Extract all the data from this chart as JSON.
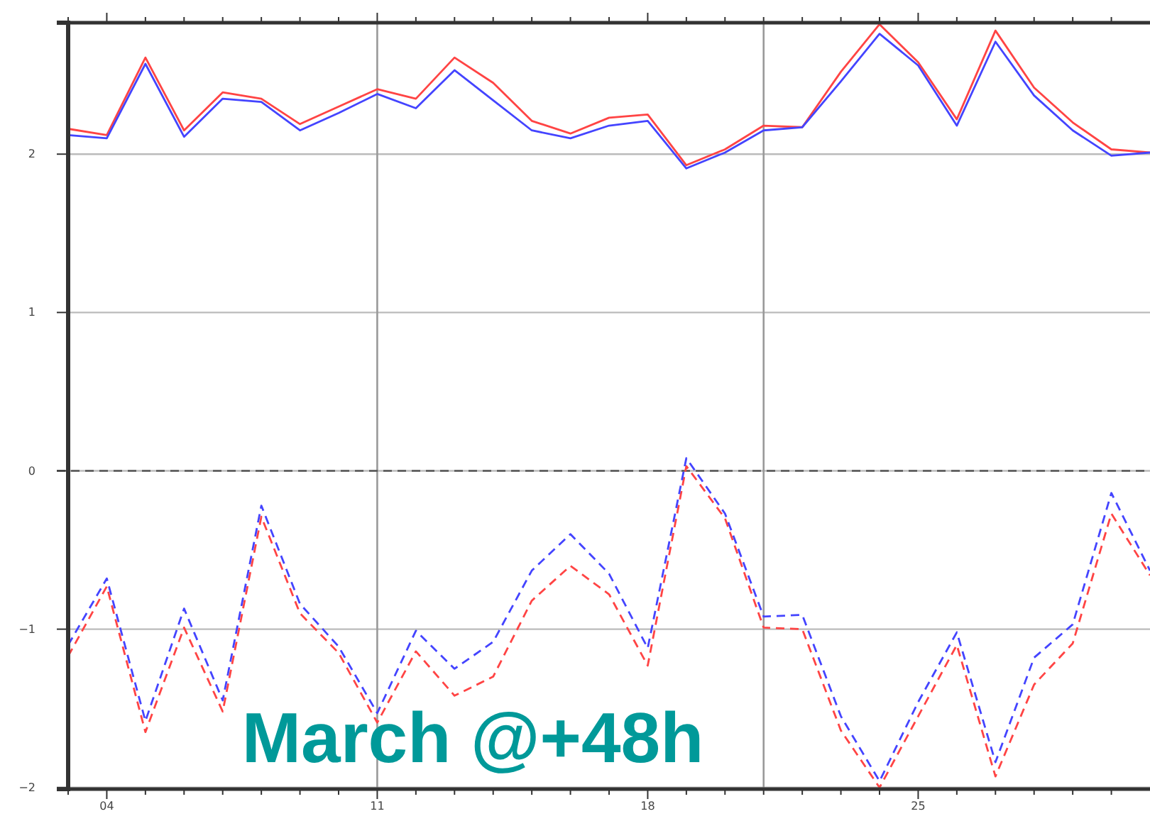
{
  "chart_data": {
    "type": "line",
    "x": [
      3,
      4,
      5,
      6,
      7,
      8,
      9,
      10,
      11,
      12,
      13,
      14,
      15,
      16,
      17,
      18,
      19,
      20,
      21,
      22,
      23,
      24,
      25,
      26,
      27,
      28,
      29,
      30,
      31
    ],
    "series": [
      {
        "color": "#ff4444",
        "line_style": "solid",
        "values": [
          2.16,
          2.12,
          2.61,
          2.15,
          2.39,
          2.35,
          2.19,
          2.3,
          2.41,
          2.35,
          2.61,
          2.45,
          2.21,
          2.13,
          2.23,
          2.25,
          1.93,
          2.03,
          2.18,
          2.17,
          2.52,
          2.82,
          2.58,
          2.22,
          2.78,
          2.42,
          2.2,
          2.03,
          2.01
        ]
      },
      {
        "color": "#4444ff",
        "line_style": "solid",
        "values": [
          2.12,
          2.1,
          2.57,
          2.11,
          2.35,
          2.33,
          2.15,
          2.26,
          2.38,
          2.29,
          2.53,
          2.34,
          2.15,
          2.1,
          2.18,
          2.21,
          1.91,
          2.01,
          2.15,
          2.17,
          2.46,
          2.76,
          2.56,
          2.18,
          2.71,
          2.37,
          2.15,
          1.99,
          2.01
        ]
      },
      {
        "color": "#ff4444",
        "line_style": "dashed",
        "values": [
          -1.17,
          -0.73,
          -1.65,
          -0.99,
          -1.52,
          -0.29,
          -0.9,
          -1.15,
          -1.59,
          -1.14,
          -1.42,
          -1.3,
          -0.82,
          -0.6,
          -0.78,
          -1.23,
          0.03,
          -0.3,
          -0.99,
          -1.0,
          -1.64,
          -2.0,
          -1.55,
          -1.1,
          -1.93,
          -1.35,
          -1.09,
          -0.27,
          -0.66
        ]
      },
      {
        "color": "#4444ff",
        "line_style": "dashed",
        "values": [
          -1.1,
          -0.68,
          -1.58,
          -0.87,
          -1.45,
          -0.22,
          -0.84,
          -1.11,
          -1.53,
          -1.01,
          -1.25,
          -1.08,
          -0.63,
          -0.4,
          -0.65,
          -1.12,
          0.08,
          -0.27,
          -0.92,
          -0.91,
          -1.55,
          -1.96,
          -1.46,
          -1.02,
          -1.84,
          -1.18,
          -0.97,
          -0.14,
          -0.63
        ]
      }
    ],
    "xlim": [
      3,
      31
    ],
    "xticks": [
      {
        "value": 3,
        "label": null
      },
      {
        "value": 4,
        "label": "04"
      },
      {
        "value": 5,
        "label": null
      },
      {
        "value": 6,
        "label": null
      },
      {
        "value": 7,
        "label": null
      },
      {
        "value": 8,
        "label": null
      },
      {
        "value": 9,
        "label": null
      },
      {
        "value": 10,
        "label": null
      },
      {
        "value": 11,
        "label": "11"
      },
      {
        "value": 12,
        "label": null
      },
      {
        "value": 13,
        "label": null
      },
      {
        "value": 14,
        "label": null
      },
      {
        "value": 15,
        "label": null
      },
      {
        "value": 16,
        "label": null
      },
      {
        "value": 17,
        "label": null
      },
      {
        "value": 18,
        "label": "18"
      },
      {
        "value": 19,
        "label": null
      },
      {
        "value": 20,
        "label": null
      },
      {
        "value": 21,
        "label": null
      },
      {
        "value": 22,
        "label": null
      },
      {
        "value": 23,
        "label": null
      },
      {
        "value": 24,
        "label": null
      },
      {
        "value": 25,
        "label": "25"
      },
      {
        "value": 26,
        "label": null
      },
      {
        "value": 27,
        "label": null
      },
      {
        "value": 28,
        "label": null
      },
      {
        "value": 29,
        "label": null
      },
      {
        "value": 30,
        "label": null
      }
    ],
    "ylim": [
      -2.01,
      2.83
    ],
    "yticks": [
      {
        "value": -2,
        "label": "−2"
      },
      {
        "value": -1,
        "label": "−1"
      },
      0,
      1,
      2
    ],
    "grid": "y",
    "ref_lines": [
      {
        "axis": "x",
        "value": 11,
        "color": "#999999",
        "line_style": "solid"
      },
      {
        "axis": "x",
        "value": 21,
        "color": "#999999",
        "line_style": "solid"
      },
      {
        "axis": "y",
        "value": 0,
        "color": "#555555",
        "line_style": "dashed"
      }
    ],
    "marker": "none",
    "annotations": [
      "March @+48h"
    ]
  }
}
